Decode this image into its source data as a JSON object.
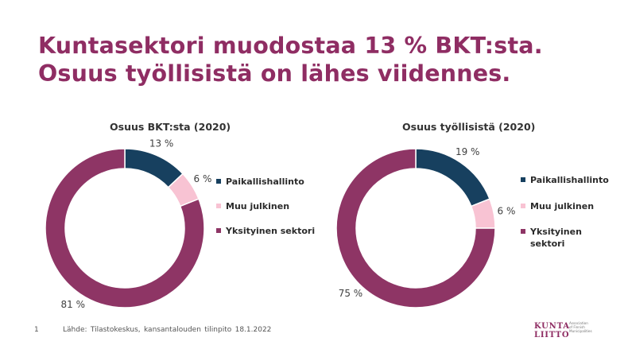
{
  "title": {
    "line1": "Kuntasektori muodostaa 13 % BKT:sta.",
    "line2": "Osuus työllisistä on lähes viidennes."
  },
  "chart_data": [
    {
      "type": "pie",
      "title": "Osuus BKT:sta (2020)",
      "categories": [
        "Paikallishallinto",
        "Muu julkinen",
        "Yksityinen sektori"
      ],
      "values": [
        13,
        6,
        81
      ],
      "value_labels": [
        "13 %",
        "6 %",
        "81 %"
      ],
      "colors": [
        "#17405f",
        "#f8c3d3",
        "#8e3565"
      ],
      "legend": "right"
    },
    {
      "type": "pie",
      "title": "Osuus työllisistä (2020)",
      "categories": [
        "Paikallishallinto",
        "Muu julkinen",
        "Yksityinen sektori"
      ],
      "values": [
        19,
        6,
        75
      ],
      "value_labels": [
        "19 %",
        "6 %",
        "75 %"
      ],
      "colors": [
        "#17405f",
        "#f8c3d3",
        "#8e3565"
      ],
      "legend": "right"
    }
  ],
  "legend_labels_wrapped": [
    "Yksityinen",
    "sektori"
  ],
  "footer": {
    "page_number": "1",
    "source": "Lähde: Tilastokeskus, kansantalouden tilinpito 18.1.2022"
  },
  "logo": {
    "line1": "KUNTA",
    "line2": "LIITTO",
    "sub1": "Association",
    "sub2": "of Finnish",
    "sub3": "Municipalities"
  }
}
